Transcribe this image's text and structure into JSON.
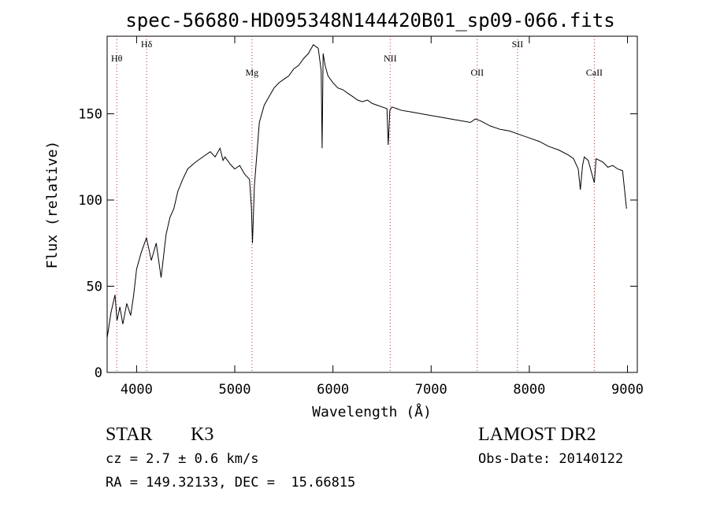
{
  "chart_data": {
    "type": "line",
    "title": "spec-56680-HD095348N144420B01_sp09-066.fits",
    "xlabel": "Wavelength (Å)",
    "ylabel": "Flux (relative)",
    "xlim": [
      3700,
      9100
    ],
    "ylim": [
      0,
      195
    ],
    "xticks": [
      4000,
      5000,
      6000,
      7000,
      8000,
      9000
    ],
    "yticks": [
      0,
      50,
      100,
      150
    ],
    "grid": false,
    "series": [
      {
        "x": [
          3700,
          3740,
          3780,
          3800,
          3830,
          3860,
          3900,
          3940,
          3970,
          4000,
          4050,
          4100,
          4150,
          4200,
          4250,
          4300,
          4340,
          4380,
          4420,
          4470,
          4520,
          4560,
          4600,
          4650,
          4700,
          4750,
          4800,
          4850,
          4880,
          4900,
          4950,
          5000,
          5050,
          5100,
          5150,
          5170,
          5180,
          5200,
          5250,
          5300,
          5350,
          5400,
          5450,
          5500,
          5550,
          5600,
          5650,
          5700,
          5750,
          5800,
          5850,
          5880,
          5890,
          5900,
          5920,
          5950,
          6000,
          6050,
          6100,
          6150,
          6200,
          6250,
          6300,
          6350,
          6400,
          6450,
          6500,
          6550,
          6563,
          6580,
          6600,
          6650,
          6700,
          6800,
          6900,
          7000,
          7100,
          7200,
          7300,
          7400,
          7450,
          7500,
          7600,
          7700,
          7800,
          7900,
          8000,
          8100,
          8200,
          8300,
          8400,
          8450,
          8498,
          8520,
          8542,
          8560,
          8600,
          8662,
          8680,
          8750,
          8800,
          8850,
          8900,
          8950,
          8990
        ],
        "y": [
          20,
          35,
          45,
          30,
          38,
          28,
          40,
          33,
          45,
          60,
          70,
          78,
          65,
          75,
          55,
          80,
          90,
          95,
          105,
          112,
          118,
          120,
          122,
          124,
          126,
          128,
          125,
          130,
          123,
          125,
          121,
          118,
          120,
          115,
          112,
          95,
          75,
          108,
          145,
          155,
          160,
          165,
          168,
          170,
          172,
          176,
          178,
          182,
          185,
          190,
          188,
          175,
          130,
          185,
          178,
          172,
          168,
          165,
          164,
          162,
          160,
          158,
          157,
          158,
          156,
          155,
          154,
          153,
          132,
          152,
          154,
          153,
          152,
          151,
          150,
          149,
          148,
          147,
          146,
          145,
          147,
          146,
          143,
          141,
          140,
          138,
          136,
          134,
          131,
          129,
          126,
          124,
          118,
          106,
          120,
          125,
          123,
          110,
          124,
          122,
          119,
          120,
          118,
          117,
          95
        ]
      }
    ],
    "lines": [
      {
        "label": "Hθ",
        "x": 3798
      },
      {
        "label": "Hδ",
        "x": 4102
      },
      {
        "label": "Mg",
        "x": 5175
      },
      {
        "label": "NII",
        "x": 6583
      },
      {
        "label": "OII",
        "x": 7470
      },
      {
        "label": "SII",
        "x": 7880
      },
      {
        "label": "CaII",
        "x": 8662
      }
    ]
  },
  "info": {
    "object_class": "STAR",
    "subclass": "K3",
    "survey": "LAMOST DR2",
    "redshift": "cz = 2.7 ± 0.6 km/s",
    "obs_date": "Obs-Date: 20140122",
    "coords": "RA = 149.32133, DEC =  15.66815"
  },
  "colors": {
    "spectrum": "#000000",
    "line_markers": "#b03030",
    "background": "#ffffff"
  }
}
